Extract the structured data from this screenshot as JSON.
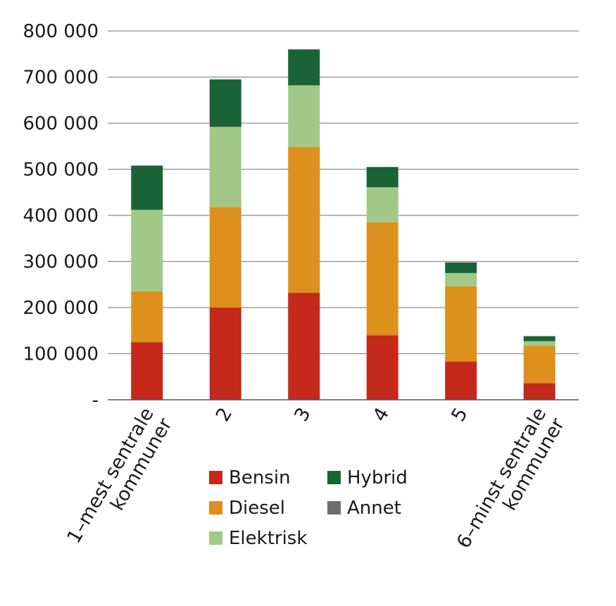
{
  "chart_data": {
    "type": "bar",
    "stacked": true,
    "categories": [
      [
        "1–mest sentrale",
        "kommuner"
      ],
      [
        "2"
      ],
      [
        "3"
      ],
      [
        "4"
      ],
      [
        "5"
      ],
      [
        "6–minst sentrale",
        "kommuner"
      ]
    ],
    "series": [
      {
        "name": "Bensin",
        "color": "#c4291c",
        "values": [
          125000,
          200000,
          232000,
          140000,
          83000,
          36000
        ]
      },
      {
        "name": "Diesel",
        "color": "#de901c",
        "values": [
          110000,
          218000,
          316000,
          245000,
          163000,
          81000
        ]
      },
      {
        "name": "Elektrisk",
        "color": "#a2c888",
        "values": [
          177000,
          174000,
          134000,
          76000,
          29000,
          10000
        ]
      },
      {
        "name": "Hybrid",
        "color": "#1a6337",
        "values": [
          96000,
          103000,
          78000,
          44000,
          23000,
          11000
        ]
      },
      {
        "name": "Annet",
        "color": "#6d6e70",
        "values": [
          0,
          0,
          0,
          0,
          0,
          0
        ]
      }
    ],
    "ylim": [
      0,
      800000
    ],
    "yticks": [
      0,
      100000,
      200000,
      300000,
      400000,
      500000,
      600000,
      700000,
      800000
    ],
    "ytick_labels": [
      "-",
      "100 000",
      "200 000",
      "300 000",
      "400 000",
      "500 000",
      "600 000",
      "700 000",
      "800 000"
    ],
    "grid": true,
    "legend_placement": "bottom-center",
    "legend_order": [
      "Bensin",
      "Hybrid",
      "Diesel",
      "Annet",
      "Elektrisk"
    ],
    "title": "",
    "xlabel": "",
    "ylabel": ""
  }
}
